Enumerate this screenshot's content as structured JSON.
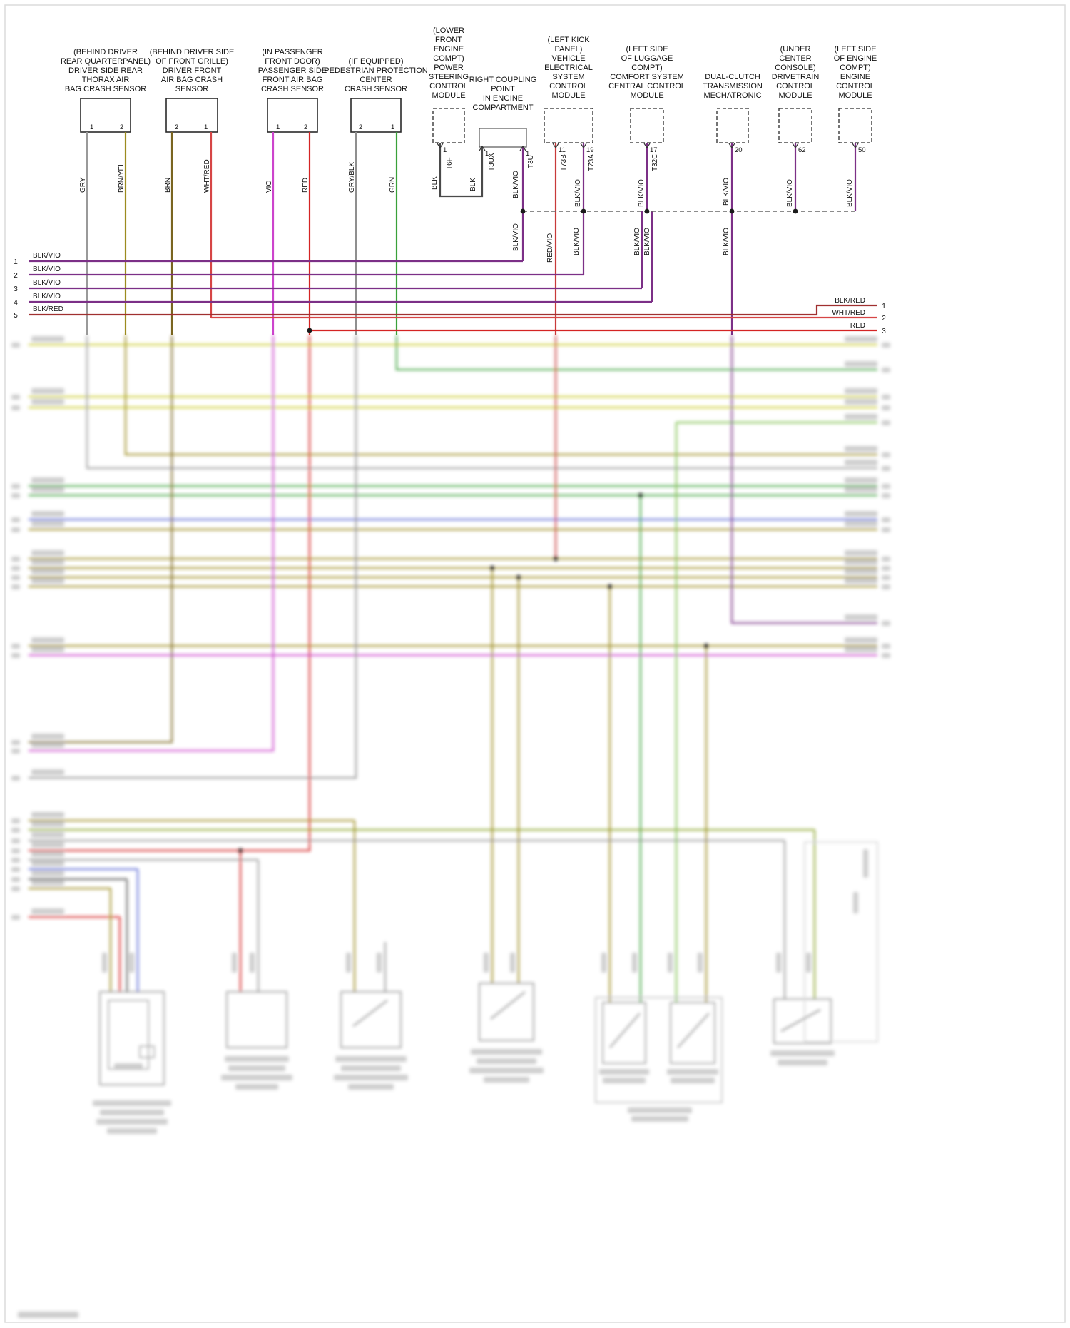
{
  "colors": {
    "GRY": "#9a9a9a",
    "BRN/YEL": "#9c8b1f",
    "BRN": "#7a6520",
    "WHT/RED": "#d64545",
    "VIO": "#cc44cc",
    "RED": "#d42424",
    "GRY/BLK": "#8f8f8f",
    "GRN": "#3aa13a",
    "BLK": "#4a4a4a",
    "BLK/VIO": "#7c3087",
    "RED/VIO": "#c83a3a",
    "BLK/RED": "#a03030"
  },
  "comps": [
    {
      "lines": [
        "(BEHIND DRIVER",
        "REAR QUARTERPANEL)",
        "DRIVER SIDE REAR",
        "THORAX AIR",
        "BAG CRASH SENSOR"
      ],
      "pins": [
        {
          "n": "1",
          "wire": "GRY"
        },
        {
          "n": "2",
          "wire": "BRN/YEL"
        }
      ]
    },
    {
      "lines": [
        "(BEHIND DRIVER SIDE",
        "OF FRONT GRILLE)",
        "DRIVER FRONT",
        "AIR BAG CRASH",
        "SENSOR"
      ],
      "pins": [
        {
          "n": "2",
          "wire": "BRN"
        },
        {
          "n": "1",
          "wire": "WHT/RED"
        }
      ]
    },
    {
      "lines": [
        "(IN PASSENGER",
        "FRONT DOOR)",
        "PASSENGER SIDE",
        "FRONT AIR BAG",
        "CRASH SENSOR"
      ],
      "pins": [
        {
          "n": "1",
          "wire": "VIO"
        },
        {
          "n": "2",
          "wire": "RED"
        }
      ]
    },
    {
      "lines": [
        "(IF EQUIPPED)",
        "PEDESTRIAN PROTECTION",
        "CENTER",
        "CRASH SENSOR"
      ],
      "pins": [
        {
          "n": "2",
          "wire": "GRY/BLK"
        },
        {
          "n": "1",
          "wire": "GRN"
        }
      ]
    },
    {
      "lines": [
        "(LOWER",
        "FRONT",
        "ENGINE",
        "COMPT)",
        "POWER",
        "STEERING",
        "CONTROL",
        "MODULE"
      ],
      "pins": [
        {
          "n": "1",
          "wire": "BLK",
          "conn": "T6F"
        }
      ]
    },
    {
      "lines": [
        "RIGHT COUPLING",
        "POINT",
        "IN ENGINE",
        "COMPARTMENT"
      ],
      "pins": [
        {
          "n": "1",
          "wire": "BLK",
          "conn": "T3UX"
        },
        {
          "n": "1",
          "wire": "BLK/VIO",
          "conn": "T3U"
        }
      ]
    },
    {
      "lines": [
        "(LEFT KICK",
        "PANEL)",
        "VEHICLE",
        "ELECTRICAL",
        "SYSTEM",
        "CONTROL",
        "MODULE"
      ],
      "pins": [
        {
          "n": "11",
          "wire": "RED/VIO",
          "conn": "T73B"
        },
        {
          "n": "19",
          "wire": "BLK/VIO",
          "conn": "T73A"
        }
      ]
    },
    {
      "lines": [
        "(LEFT SIDE",
        "OF LUGGAGE",
        "COMPT)",
        "COMFORT SYSTEM",
        "CENTRAL CONTROL",
        "MODULE"
      ],
      "pins": [
        {
          "n": "17",
          "wire": "BLK/VIO",
          "conn": "T32C"
        }
      ]
    },
    {
      "lines": [
        "DUAL-CLUTCH",
        "TRANSMISSION",
        "MECHATRONIC"
      ],
      "pins": [
        {
          "n": "20",
          "wire": "BLK/VIO"
        }
      ]
    },
    {
      "lines": [
        "(UNDER",
        "CENTER",
        "CONSOLE)",
        "DRIVETRAIN",
        "CONTROL",
        "MODULE"
      ],
      "pins": [
        {
          "n": "62",
          "wire": "BLK/VIO"
        }
      ]
    },
    {
      "lines": [
        "(LEFT SIDE",
        "OF ENGINE",
        "COMPT)",
        "ENGINE",
        "CONTROL",
        "MODULE"
      ],
      "pins": [
        {
          "n": "50",
          "wire": "BLK/VIO"
        }
      ]
    }
  ],
  "lbus": [
    {
      "num": "1",
      "label": "BLK/VIO"
    },
    {
      "num": "2",
      "label": "BLK/VIO"
    },
    {
      "num": "3",
      "label": "BLK/VIO"
    },
    {
      "num": "4",
      "label": "BLK/VIO"
    },
    {
      "num": "5",
      "label": "BLK/RED"
    }
  ],
  "rbus": [
    {
      "num": "1",
      "label": "BLK/RED"
    },
    {
      "num": "2",
      "label": "WHT/RED"
    },
    {
      "num": "3",
      "label": "RED"
    }
  ]
}
